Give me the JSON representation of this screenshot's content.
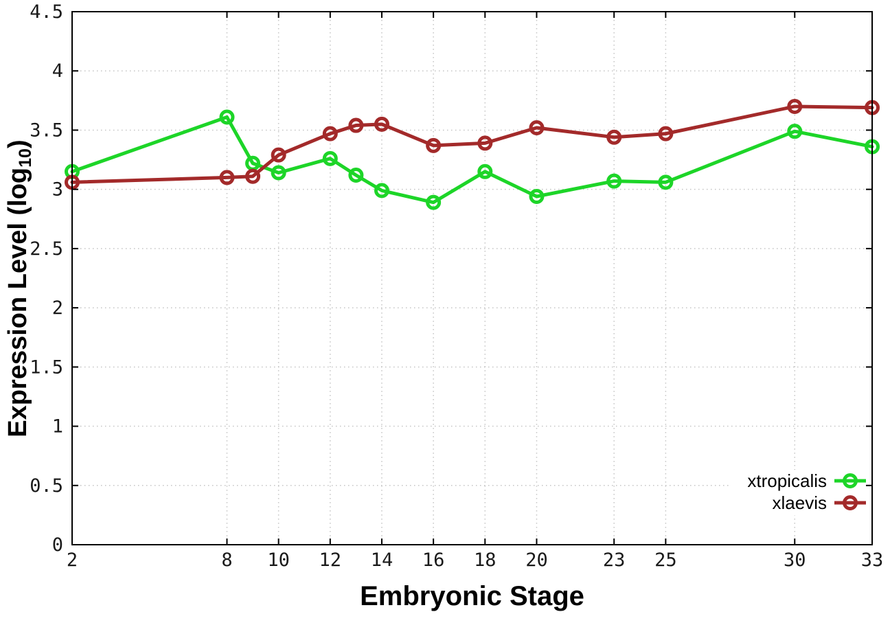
{
  "figure": {
    "xlabel": "Embryonic Stage",
    "ylabel_main": "Expression Level (log",
    "ylabel_sub": "10",
    "ylabel_close": ")"
  },
  "chart_data": {
    "type": "line",
    "title": "",
    "xlabel": "Embryonic Stage",
    "ylabel": "Expression Level (log10)",
    "x": [
      2,
      8,
      9,
      10,
      12,
      13,
      14,
      16,
      18,
      20,
      23,
      25,
      30,
      33
    ],
    "series": [
      {
        "name": "xtropicalis",
        "color": "#1dd528",
        "values": [
          3.15,
          3.61,
          3.22,
          3.14,
          3.26,
          3.12,
          2.99,
          2.89,
          3.15,
          2.94,
          3.07,
          3.06,
          3.49,
          3.36
        ]
      },
      {
        "name": "xlaevis",
        "color": "#a32a2a",
        "values": [
          3.06,
          3.1,
          3.11,
          3.29,
          3.47,
          3.54,
          3.55,
          3.37,
          3.39,
          3.52,
          3.44,
          3.47,
          3.7,
          3.69
        ]
      }
    ],
    "xlim": [
      2,
      33
    ],
    "ylim": [
      0,
      4.5
    ],
    "x_ticks": [
      2,
      8,
      10,
      12,
      14,
      16,
      18,
      20,
      23,
      25,
      30,
      33
    ],
    "y_ticks": [
      0,
      0.5,
      1,
      1.5,
      2,
      2.5,
      3,
      3.5,
      4,
      4.5
    ],
    "grid": true,
    "marker": "open-circle",
    "legend_position": "inside-bottom-right"
  },
  "style": {
    "axis_color": "#000000",
    "grid_color": "#c4c4c4",
    "tick_label_color": "#1a1a1a",
    "background": "#ffffff"
  }
}
